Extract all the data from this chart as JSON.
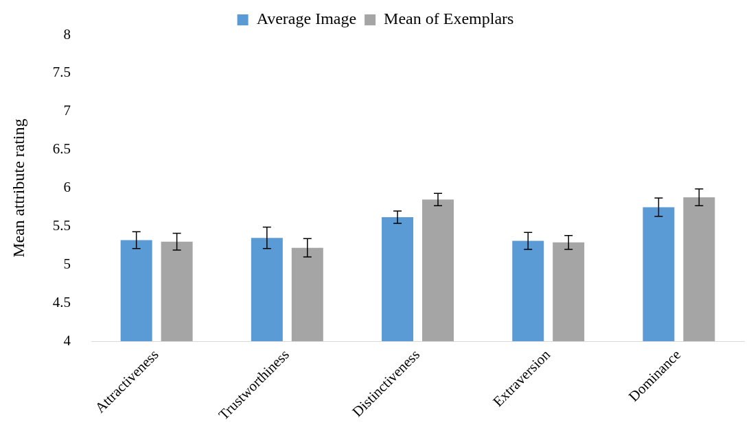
{
  "chart_data": {
    "type": "bar",
    "ylabel": "Mean attribute rating",
    "categories": [
      "Attractiveness",
      "Trustworthiness",
      "Distinctiveness",
      "Extraversion",
      "Dominance"
    ],
    "series": [
      {
        "name": "Average Image",
        "color": "#5b9bd5",
        "values": [
          5.32,
          5.35,
          5.62,
          5.31,
          5.75
        ],
        "errors": [
          0.11,
          0.14,
          0.08,
          0.11,
          0.12
        ]
      },
      {
        "name": "Mean of Exemplars",
        "color": "#a5a5a5",
        "values": [
          5.3,
          5.22,
          5.85,
          5.29,
          5.88
        ],
        "errors": [
          0.11,
          0.12,
          0.08,
          0.09,
          0.11
        ]
      }
    ],
    "ylim": [
      4,
      8
    ],
    "yticks": [
      4,
      4.5,
      5,
      5.5,
      6,
      6.5,
      7,
      7.5,
      8
    ],
    "grid": false,
    "legend": "top"
  }
}
